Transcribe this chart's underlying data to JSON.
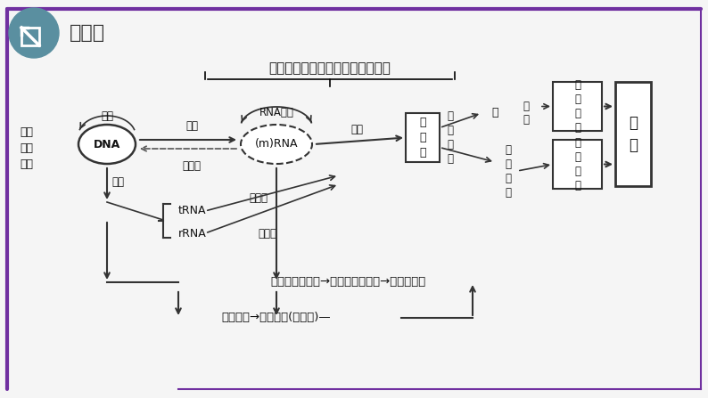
{
  "bg_color": "#f5f5f5",
  "border_color": "#6a3d8f",
  "title_icon_color": "#5a8fa0",
  "title_text": "概念图",
  "main_title": "控制蛋白质合成（表达遗传信息）",
  "left_label": [
    "遗传",
    "信息",
    "传递"
  ],
  "dna_label": "DNA",
  "mrna_label": "(m)RNA",
  "protein_label": [
    "蛋白",
    "质"
  ],
  "trna_label": "tRNA",
  "rrna_label": "rRNA",
  "rna_copy_label": "RNA复制",
  "transcription_label": "转录",
  "reverse_transcription_label": "逆转录",
  "translation_label": "翻译",
  "translator_label": "翻译者",
  "ribosome_label": "核糖体",
  "scene_label": [
    "（",
    "场",
    "所",
    "）"
  ],
  "transcription2_label": "转录",
  "copy_label": "复制",
  "enzyme_label": "酶",
  "influence_label": "影\n响",
  "cell_structure1_label": [
    "细",
    "胞",
    "结",
    "构"
  ],
  "struct_protein_label": [
    "结",
    "构",
    "蛋",
    "白"
  ],
  "cell_structure2_label": [
    "细",
    "胞",
    "结",
    "构"
  ],
  "trait_label": [
    "性",
    "状"
  ],
  "bottom_text1": "脱氧核苷酸序列→核糖核苷酸序列→氨基酸序列",
  "bottom_text2": "遗传信息→遗传密码(密码子)—",
  "arrow_color": "#222222",
  "dashed_color": "#555555",
  "box_color": "#222222",
  "purple_line": "#7030a0"
}
